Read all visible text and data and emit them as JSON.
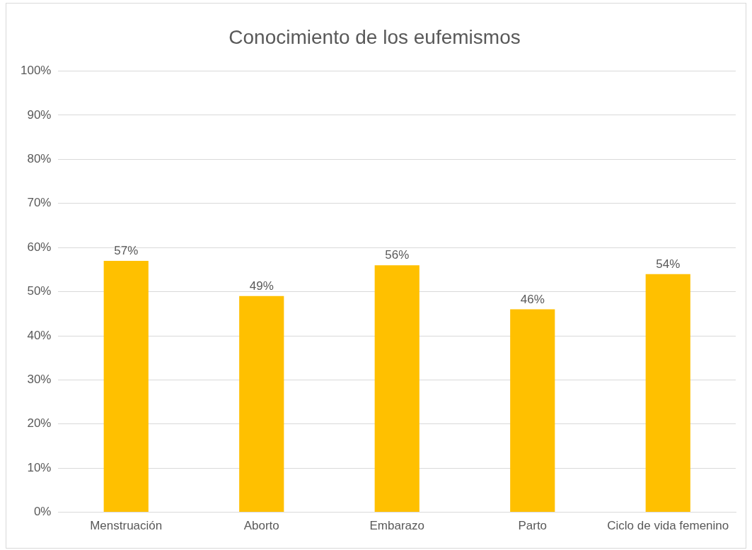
{
  "chart_data": {
    "type": "bar",
    "title": "Conocimiento de los eufemismos",
    "categories": [
      "Menstruación",
      "Aborto",
      "Embarazo",
      "Parto",
      "Ciclo de vida femenino"
    ],
    "values": [
      57,
      49,
      56,
      46,
      54
    ],
    "color": "#ffc000",
    "value_labels": [
      "57%",
      "49%",
      "56%",
      "46%",
      "54%"
    ],
    "ylim": [
      0,
      100
    ],
    "yticks": [
      {
        "value": 0,
        "label": "0%"
      },
      {
        "value": 10,
        "label": "10%"
      },
      {
        "value": 20,
        "label": "20%"
      },
      {
        "value": 30,
        "label": "30%"
      },
      {
        "value": 40,
        "label": "40%"
      },
      {
        "value": 50,
        "label": "50%"
      },
      {
        "value": 60,
        "label": "60%"
      },
      {
        "value": 70,
        "label": "70%"
      },
      {
        "value": 80,
        "label": "80%"
      },
      {
        "value": 90,
        "label": "90%"
      },
      {
        "value": 100,
        "label": "100%"
      }
    ],
    "grid": "y",
    "legend": false
  }
}
